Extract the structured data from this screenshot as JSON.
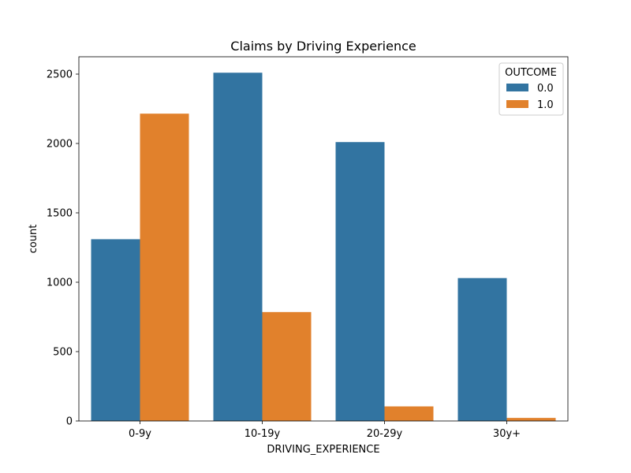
{
  "chart_data": {
    "type": "bar",
    "title": "Claims by Driving Experience",
    "xlabel": "DRIVING_EXPERIENCE",
    "ylabel": "count",
    "categories": [
      "0-9y",
      "10-19y",
      "20-29y",
      "30y+"
    ],
    "series": [
      {
        "name": "0.0",
        "color": "#3274a1",
        "values": [
          1310,
          2510,
          2010,
          1030
        ]
      },
      {
        "name": "1.0",
        "color": "#e1812c",
        "values": [
          2215,
          785,
          105,
          22
        ]
      }
    ],
    "ylim": [
      0,
      2625
    ],
    "yticks": [
      0,
      500,
      1000,
      1500,
      2000,
      2500
    ],
    "grid": false,
    "legend": {
      "title": "OUTCOME",
      "position": "top-right"
    }
  }
}
